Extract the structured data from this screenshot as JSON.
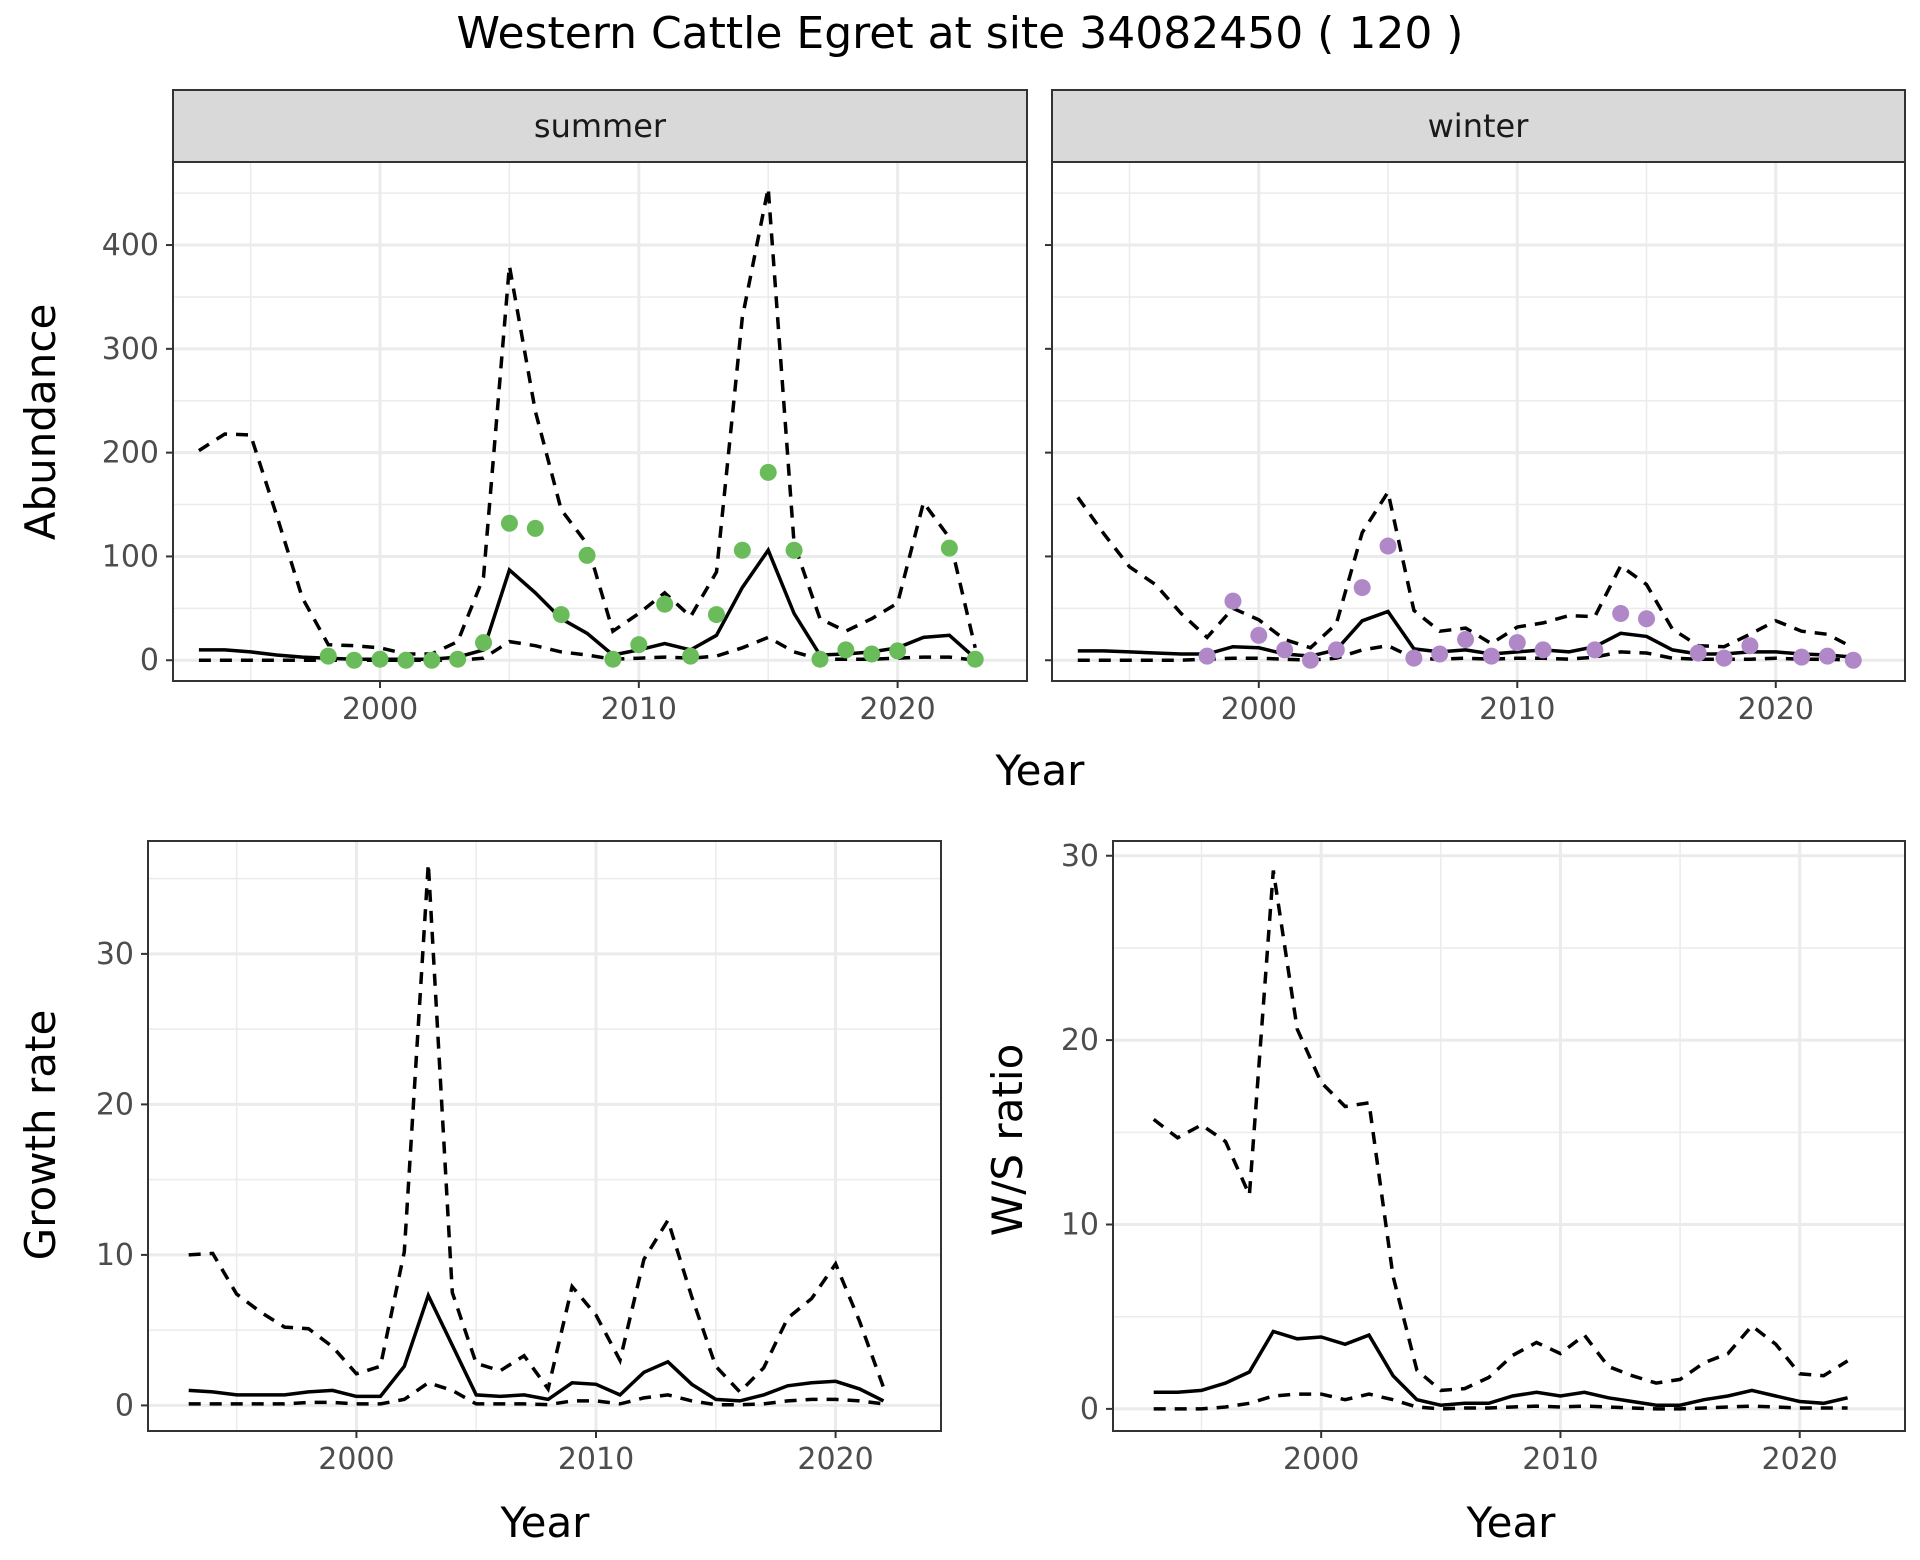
{
  "figure": {
    "title": "Western Cattle Egret at site 34082450 ( 120 )"
  },
  "chart_data": [
    {
      "id": "summer",
      "type": "line",
      "facet": "summer",
      "xlabel": "Year",
      "ylabel": "Abundance",
      "xlim": [
        1992,
        2025
      ],
      "ylim": [
        -20,
        480
      ],
      "xticks": [
        2000,
        2010,
        2020
      ],
      "yticks": [
        0,
        100,
        200,
        300,
        400
      ],
      "grid": true,
      "point_color": "#6ABC5A",
      "lines": {
        "x": [
          1993,
          1994,
          1995,
          1996,
          1997,
          1998,
          1999,
          2000,
          2001,
          2002,
          2003,
          2004,
          2005,
          2006,
          2007,
          2008,
          2009,
          2010,
          2011,
          2012,
          2013,
          2014,
          2015,
          2016,
          2017,
          2018,
          2019,
          2020,
          2021,
          2022,
          2023
        ],
        "mid": [
          10,
          10,
          8,
          5,
          3,
          2,
          1,
          1,
          1,
          1,
          3,
          10,
          87,
          65,
          40,
          26,
          5,
          10,
          16,
          10,
          24,
          70,
          106,
          45,
          5,
          6,
          8,
          12,
          22,
          24,
          2
        ],
        "upper": [
          202,
          218,
          217,
          140,
          60,
          15,
          14,
          12,
          6,
          6,
          18,
          80,
          380,
          240,
          145,
          112,
          28,
          45,
          65,
          42,
          85,
          330,
          455,
          112,
          40,
          28,
          40,
          55,
          152,
          118,
          12
        ],
        "lower": [
          0,
          0,
          0,
          0,
          0,
          0,
          0,
          0,
          0,
          0,
          0,
          2,
          18,
          14,
          8,
          5,
          1,
          2,
          3,
          2,
          4,
          12,
          22,
          8,
          1,
          1,
          1,
          2,
          3,
          3,
          0
        ]
      },
      "points": {
        "x": [
          1998,
          1999,
          2000,
          2001,
          2002,
          2003,
          2004,
          2005,
          2006,
          2007,
          2008,
          2009,
          2010,
          2011,
          2012,
          2013,
          2014,
          2015,
          2016,
          2017,
          2018,
          2019,
          2020,
          2022,
          2023
        ],
        "y": [
          4,
          0,
          1,
          0,
          0,
          1,
          17,
          132,
          127,
          44,
          101,
          1,
          15,
          54,
          4,
          44,
          106,
          181,
          106,
          1,
          10,
          6,
          9,
          108,
          1
        ]
      }
    },
    {
      "id": "winter",
      "type": "line",
      "facet": "winter",
      "xlabel": "Year",
      "ylabel": "",
      "xlim": [
        1992,
        2025
      ],
      "ylim": [
        -20,
        480
      ],
      "xticks": [
        2000,
        2010,
        2020
      ],
      "yticks": [
        0,
        100,
        200,
        300,
        400
      ],
      "grid": true,
      "point_color": "#B088C8",
      "lines": {
        "x": [
          1993,
          1994,
          1995,
          1996,
          1997,
          1998,
          1999,
          2000,
          2001,
          2002,
          2003,
          2004,
          2005,
          2006,
          2007,
          2008,
          2009,
          2010,
          2011,
          2012,
          2013,
          2014,
          2015,
          2016,
          2017,
          2018,
          2019,
          2020,
          2021,
          2022,
          2023
        ],
        "mid": [
          9,
          9,
          8,
          7,
          6,
          6,
          13,
          12,
          6,
          4,
          10,
          38,
          47,
          11,
          8,
          10,
          6,
          8,
          10,
          8,
          13,
          26,
          23,
          10,
          6,
          6,
          8,
          8,
          6,
          5,
          3
        ],
        "upper": [
          157,
          122,
          90,
          73,
          45,
          22,
          50,
          39,
          20,
          12,
          35,
          123,
          162,
          48,
          28,
          31,
          16,
          32,
          36,
          43,
          42,
          91,
          73,
          30,
          14,
          13,
          25,
          38,
          28,
          25,
          12
        ],
        "lower": [
          0,
          0,
          0,
          0,
          0,
          1,
          2,
          2,
          1,
          0,
          2,
          10,
          14,
          2,
          1,
          2,
          1,
          2,
          2,
          1,
          3,
          8,
          7,
          2,
          1,
          1,
          1,
          2,
          1,
          1,
          0
        ]
      },
      "points": {
        "x": [
          1998,
          1999,
          2000,
          2001,
          2002,
          2003,
          2004,
          2005,
          2006,
          2007,
          2008,
          2009,
          2010,
          2011,
          2013,
          2014,
          2015,
          2017,
          2018,
          2019,
          2021,
          2022,
          2023
        ],
        "y": [
          4,
          57,
          24,
          10,
          0,
          10,
          70,
          110,
          2,
          6,
          20,
          4,
          17,
          10,
          10,
          45,
          40,
          7,
          2,
          14,
          3,
          4,
          0
        ]
      }
    },
    {
      "id": "growth",
      "type": "line",
      "xlabel": "Year",
      "ylabel": "Growth rate",
      "xlim": [
        1991.3,
        2024.4
      ],
      "ylim": [
        -1.7,
        37.5
      ],
      "xticks": [
        2000,
        2010,
        2020
      ],
      "yticks": [
        0,
        10,
        20,
        30
      ],
      "grid": true,
      "lines": {
        "x": [
          1993,
          1994,
          1995,
          1996,
          1997,
          1998,
          1999,
          2000,
          2001,
          2002,
          2003,
          2004,
          2005,
          2006,
          2007,
          2008,
          2009,
          2010,
          2011,
          2012,
          2013,
          2014,
          2015,
          2016,
          2017,
          2018,
          2019,
          2020,
          2021,
          2022
        ],
        "mid": [
          1.0,
          0.9,
          0.7,
          0.7,
          0.7,
          0.9,
          1.0,
          0.6,
          0.6,
          2.6,
          7.3,
          4.0,
          0.7,
          0.6,
          0.7,
          0.4,
          1.5,
          1.4,
          0.7,
          2.2,
          2.9,
          1.4,
          0.4,
          0.3,
          0.7,
          1.3,
          1.5,
          1.6,
          1.1,
          0.3
        ],
        "upper": [
          10.0,
          10.1,
          7.4,
          6.2,
          5.2,
          5.1,
          3.9,
          2.1,
          2.6,
          10.2,
          36.0,
          7.5,
          2.8,
          2.3,
          3.3,
          1.1,
          7.9,
          6.0,
          3.0,
          9.7,
          12.3,
          7.2,
          2.6,
          0.9,
          2.5,
          5.8,
          7.1,
          9.4,
          5.6,
          1.2
        ],
        "lower": [
          0.1,
          0.1,
          0.1,
          0.1,
          0.1,
          0.2,
          0.2,
          0.1,
          0.1,
          0.4,
          1.5,
          1.0,
          0.1,
          0.1,
          0.1,
          0.05,
          0.3,
          0.3,
          0.1,
          0.5,
          0.7,
          0.3,
          0.05,
          0.05,
          0.1,
          0.3,
          0.4,
          0.4,
          0.3,
          0.1
        ]
      }
    },
    {
      "id": "ratio",
      "type": "line",
      "xlabel": "Year",
      "ylabel": "W/S ratio",
      "xlim": [
        1991.3,
        2024.4
      ],
      "ylim": [
        -1.2,
        30.8
      ],
      "xticks": [
        2000,
        2010,
        2020
      ],
      "yticks": [
        0,
        10,
        20,
        30
      ],
      "grid": true,
      "lines": {
        "x": [
          1993,
          1994,
          1995,
          1996,
          1997,
          1998,
          1999,
          2000,
          2001,
          2002,
          2003,
          2004,
          2005,
          2006,
          2007,
          2008,
          2009,
          2010,
          2011,
          2012,
          2013,
          2014,
          2015,
          2016,
          2017,
          2018,
          2019,
          2020,
          2021,
          2022
        ],
        "mid": [
          0.9,
          0.9,
          1.0,
          1.4,
          2.0,
          4.2,
          3.8,
          3.9,
          3.5,
          4.0,
          1.8,
          0.5,
          0.2,
          0.3,
          0.3,
          0.7,
          0.9,
          0.7,
          0.9,
          0.6,
          0.4,
          0.2,
          0.2,
          0.5,
          0.7,
          1.0,
          0.7,
          0.4,
          0.3,
          0.6
        ],
        "upper": [
          15.7,
          14.7,
          15.4,
          14.5,
          11.6,
          29.2,
          20.6,
          17.7,
          16.4,
          16.6,
          7.2,
          2.1,
          1.0,
          1.1,
          1.7,
          2.9,
          3.6,
          3.0,
          4.0,
          2.3,
          1.8,
          1.4,
          1.6,
          2.5,
          3.0,
          4.5,
          3.5,
          1.9,
          1.8,
          2.6
        ],
        "lower": [
          0,
          0,
          0,
          0.1,
          0.3,
          0.7,
          0.8,
          0.8,
          0.5,
          0.8,
          0.5,
          0.1,
          0,
          0.05,
          0.05,
          0.1,
          0.15,
          0.1,
          0.15,
          0.1,
          0.05,
          0,
          0,
          0.05,
          0.1,
          0.15,
          0.1,
          0.05,
          0.05,
          0.05
        ]
      }
    }
  ]
}
